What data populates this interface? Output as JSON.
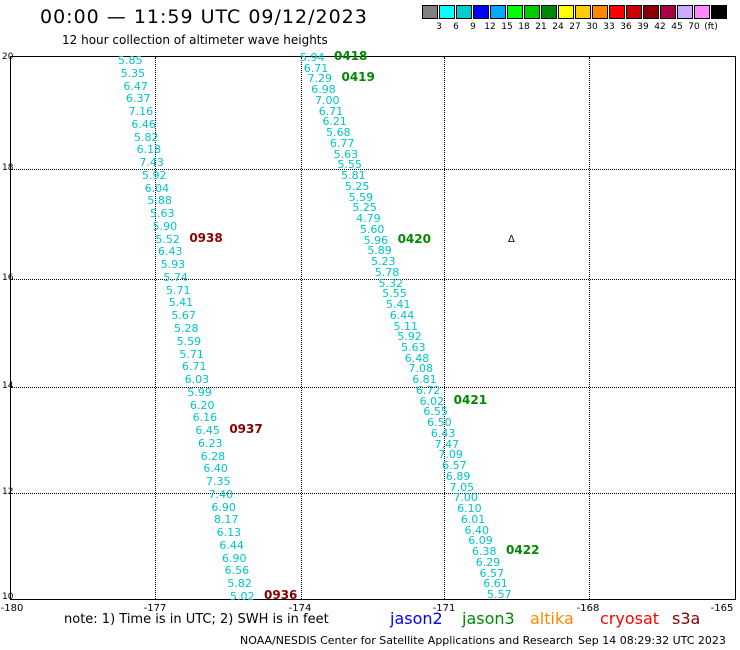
{
  "header": {
    "title": "00:00 — 11:59 UTC 09/12/2023",
    "subtitle": "12 hour collection of altimeter wave heights"
  },
  "legend": {
    "colors": [
      "#808080",
      "#00ffff",
      "#00cccc",
      "#0000ff",
      "#00aaff",
      "#00ff00",
      "#00cc00",
      "#008800",
      "#ffff00",
      "#ffcc00",
      "#ff8800",
      "#ff0000",
      "#cc0000",
      "#880000",
      "#aa0044",
      "#ccaaff",
      "#ff88ff",
      "#000000"
    ],
    "labels": [
      "3",
      "6",
      "9",
      "12",
      "15",
      "18",
      "21",
      "24",
      "27",
      "30",
      "33",
      "36",
      "39",
      "42",
      "45",
      "70",
      "(ft)"
    ]
  },
  "axes": {
    "y_ticks": [
      "20",
      "18",
      "16",
      "14",
      "12",
      "10"
    ],
    "x_ticks": [
      "-180",
      "-177",
      "-174",
      "-171",
      "-168",
      "-165"
    ]
  },
  "tracks": [
    {
      "satellite": "s3a",
      "values": [
        "5.85",
        "5.35",
        "6.47",
        "6.37",
        "7.16",
        "6.46",
        "5.82",
        "6.18",
        "7.43",
        "5.92",
        "6.04",
        "5.88",
        "5.63",
        "5.90",
        "5.52",
        "6.43",
        "5.93",
        "5.74",
        "5.71",
        "5.41",
        "5.67",
        "5.28",
        "5.59",
        "5.71",
        "6.71",
        "6.03",
        "5.99",
        "6.20",
        "6.16",
        "6.45",
        "6.23",
        "6.28",
        "6.40",
        "7.35",
        "7.40",
        "6.90",
        "8.17",
        "6.13",
        "6.44",
        "6.90",
        "6.56",
        "5.82",
        "5.02"
      ],
      "times": [
        "0938",
        "0937",
        "0936"
      ]
    },
    {
      "satellite": "jason3",
      "values": [
        "5.94",
        "6.71",
        "7.29",
        "6.98",
        "7.00",
        "6.71",
        "6.21",
        "5.68",
        "6.77",
        "5.63",
        "5.55",
        "5.81",
        "5.25",
        "5.59",
        "5.25",
        "4.79",
        "5.60",
        "5.96",
        "5.89",
        "5.23",
        "5.78",
        "5.32",
        "5.55",
        "5.41",
        "6.44",
        "5.11",
        "5.92",
        "5.63",
        "6.48",
        "7.08",
        "6.81",
        "6.72",
        "6.02",
        "6.55",
        "6.50",
        "6.43",
        "7.47",
        "7.09",
        "6.57",
        "6.89",
        "7.05",
        "7.00",
        "6.10",
        "6.01",
        "6.40",
        "6.09",
        "6.38",
        "6.29",
        "6.57",
        "6.61",
        "5.57"
      ],
      "times": [
        "0418",
        "0419",
        "0420",
        "0421",
        "0422"
      ]
    }
  ],
  "notes": {
    "note": "note: 1) Time is in UTC; 2) SWH is in feet",
    "satellites": [
      {
        "name": "jason2",
        "color": "#0000ff"
      },
      {
        "name": "jason3",
        "color": "#008800"
      },
      {
        "name": "altika",
        "color": "#ff8800"
      },
      {
        "name": "cryosat",
        "color": "#ff0000"
      },
      {
        "name": "s3a",
        "color": "#880000"
      }
    ],
    "credit": "NOAA/NESDIS Center for Satellite Applications and Research",
    "timestamp": "Sep 14 08:29:32 UTC 2023"
  },
  "marker": "Δ"
}
